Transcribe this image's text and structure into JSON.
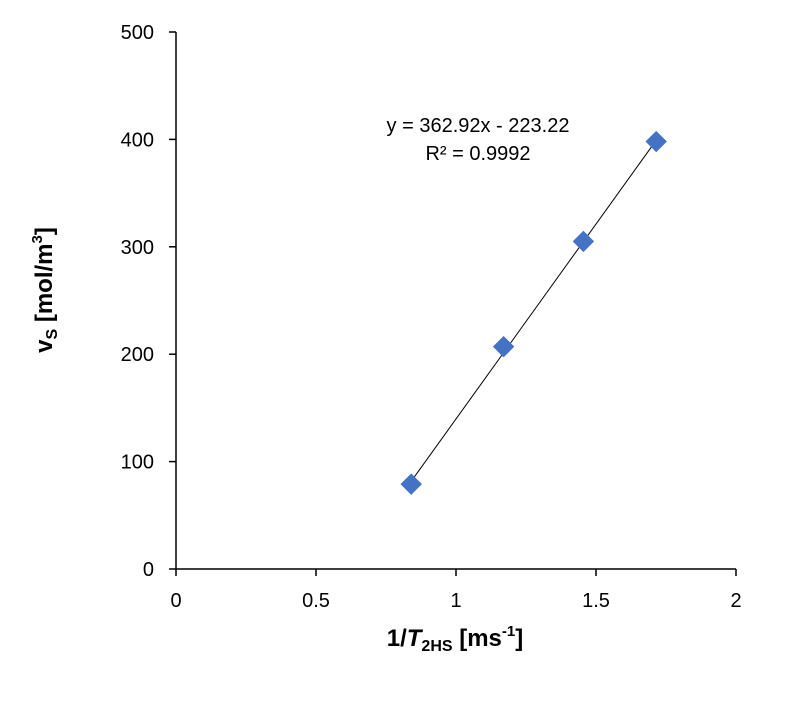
{
  "chart_data": {
    "type": "scatter",
    "points": [
      {
        "x": 0.84,
        "y": 79
      },
      {
        "x": 1.17,
        "y": 207
      },
      {
        "x": 1.455,
        "y": 305
      },
      {
        "x": 1.715,
        "y": 398
      }
    ],
    "trendline": {
      "slope": 362.92,
      "intercept": -223.22,
      "x_range": [
        0.84,
        1.715
      ]
    },
    "annotations": {
      "equation": "y = 362.92x - 223.22",
      "r_squared": "R² = 0.9992"
    },
    "xlim": [
      0,
      2
    ],
    "ylim": [
      0,
      500
    ],
    "x_ticks": [
      0,
      0.5,
      1,
      1.5,
      2
    ],
    "x_tick_labels": [
      "0",
      "0.5",
      "1",
      "1.5",
      "2"
    ],
    "y_ticks": [
      0,
      100,
      200,
      300,
      400,
      500
    ],
    "y_tick_labels": [
      "0",
      "100",
      "200",
      "300",
      "400",
      "500"
    ],
    "xlabel": {
      "prefix": "1/",
      "symbol": "T",
      "subscript": "2HS",
      "unit_open": " [ms",
      "unit_sup": "-1",
      "unit_close": "]"
    },
    "ylabel": {
      "symbol": "v",
      "subscript": "S",
      "unit_open": " [mol/m",
      "unit_sup": "3",
      "unit_close": "]"
    },
    "grid": false,
    "legend": "none",
    "marker": "diamond",
    "colors": {
      "marker": "#4472C4",
      "trendline": "#000000",
      "axis": "#000000"
    }
  }
}
